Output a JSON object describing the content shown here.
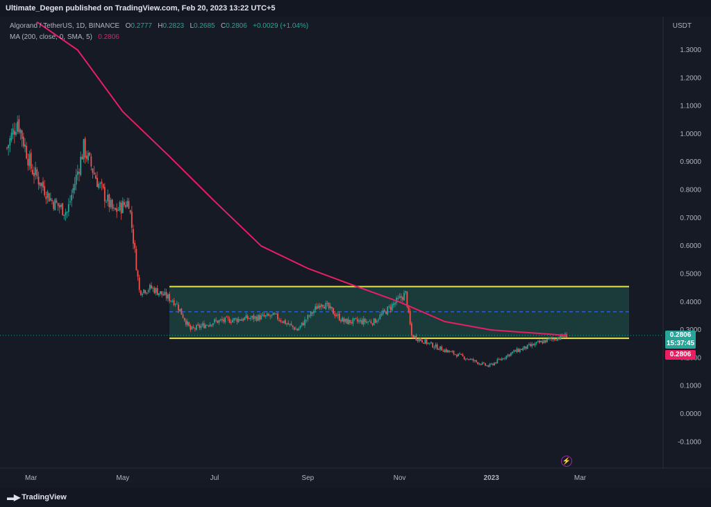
{
  "header": {
    "published_text": "Ultimate_Degen published on TradingView.com, Feb 20, 2023 13:22 UTC+5"
  },
  "legend": {
    "symbol": "Algorand / TetherUS, 1D, BINANCE",
    "o_label": "O",
    "o_value": "0.2777",
    "h_label": "H",
    "h_value": "0.2823",
    "l_label": "L",
    "l_value": "0.2685",
    "c_label": "C",
    "c_value": "0.2806",
    "change": "+0.0029 (+1.04%)",
    "ma_label": "MA (200, close, 0, SMA, 5)",
    "ma_value": "0.2806"
  },
  "price_axis": {
    "currency": "USDT"
  },
  "price_tags": {
    "last_price": "0.2806",
    "countdown": "15:37:45",
    "ma_price": "0.2806"
  },
  "footer": {
    "brand": "TradingView"
  },
  "colors": {
    "background": "#161a25",
    "up": "#26a69a",
    "down": "#ef5350",
    "ma": "#e91e63",
    "range_box": "#1e4a45",
    "range_border": "#e8e34a",
    "midline": "#2962ff"
  },
  "icons": {
    "logo": "tradingview-logo-icon",
    "event": "lightning-icon"
  },
  "chart_data": {
    "type": "candlestick",
    "title": "Algorand / TetherUS, 1D, BINANCE",
    "y_axis": {
      "label": "USDT",
      "ylim": [
        -0.13,
        1.45
      ],
      "ticks": [
        "1.3000",
        "1.2000",
        "1.1000",
        "1.0000",
        "0.9000",
        "0.8000",
        "0.7000",
        "0.6000",
        "0.5000",
        "0.4000",
        "0.3000",
        "0.2000",
        "0.1000",
        "0.0000",
        "-0.1000"
      ]
    },
    "x_axis": {
      "tick_labels": [
        "Mar",
        "May",
        "Jul",
        "Sep",
        "Nov",
        "2023",
        "Mar"
      ]
    },
    "close_price_series_approx": [
      {
        "date": "2022-02-13",
        "price": 0.95
      },
      {
        "date": "2022-02-20",
        "price": 1.05
      },
      {
        "date": "2022-03-01",
        "price": 0.88
      },
      {
        "date": "2022-03-15",
        "price": 0.76
      },
      {
        "date": "2022-03-25",
        "price": 0.72
      },
      {
        "date": "2022-04-05",
        "price": 0.95
      },
      {
        "date": "2022-04-15",
        "price": 0.82
      },
      {
        "date": "2022-04-25",
        "price": 0.72
      },
      {
        "date": "2022-05-05",
        "price": 0.76
      },
      {
        "date": "2022-05-12",
        "price": 0.44
      },
      {
        "date": "2022-05-20",
        "price": 0.45
      },
      {
        "date": "2022-06-05",
        "price": 0.4
      },
      {
        "date": "2022-06-15",
        "price": 0.3
      },
      {
        "date": "2022-07-01",
        "price": 0.33
      },
      {
        "date": "2022-07-20",
        "price": 0.34
      },
      {
        "date": "2022-08-10",
        "price": 0.35
      },
      {
        "date": "2022-08-25",
        "price": 0.3
      },
      {
        "date": "2022-09-10",
        "price": 0.4
      },
      {
        "date": "2022-09-25",
        "price": 0.33
      },
      {
        "date": "2022-10-15",
        "price": 0.33
      },
      {
        "date": "2022-11-05",
        "price": 0.43
      },
      {
        "date": "2022-11-09",
        "price": 0.28
      },
      {
        "date": "2022-11-25",
        "price": 0.24
      },
      {
        "date": "2022-12-10",
        "price": 0.21
      },
      {
        "date": "2022-12-30",
        "price": 0.17
      },
      {
        "date": "2023-01-15",
        "price": 0.22
      },
      {
        "date": "2023-02-05",
        "price": 0.26
      },
      {
        "date": "2023-02-20",
        "price": 0.2806
      }
    ],
    "ma_200_series_approx": [
      {
        "date": "2022-03-05",
        "value": 1.4
      },
      {
        "date": "2022-04-01",
        "value": 1.3
      },
      {
        "date": "2022-05-01",
        "value": 1.08
      },
      {
        "date": "2022-06-01",
        "value": 0.92
      },
      {
        "date": "2022-07-01",
        "value": 0.76
      },
      {
        "date": "2022-08-01",
        "value": 0.6
      },
      {
        "date": "2022-09-01",
        "value": 0.52
      },
      {
        "date": "2022-10-01",
        "value": 0.46
      },
      {
        "date": "2022-11-01",
        "value": 0.4
      },
      {
        "date": "2022-12-01",
        "value": 0.33
      },
      {
        "date": "2023-01-01",
        "value": 0.3
      },
      {
        "date": "2023-02-20",
        "value": 0.2806
      }
    ],
    "range_box": {
      "top": 0.455,
      "bottom": 0.27,
      "midline": 0.365,
      "start_date": "2022-06-01",
      "end_date": "2023-04-25"
    },
    "grid": false
  }
}
